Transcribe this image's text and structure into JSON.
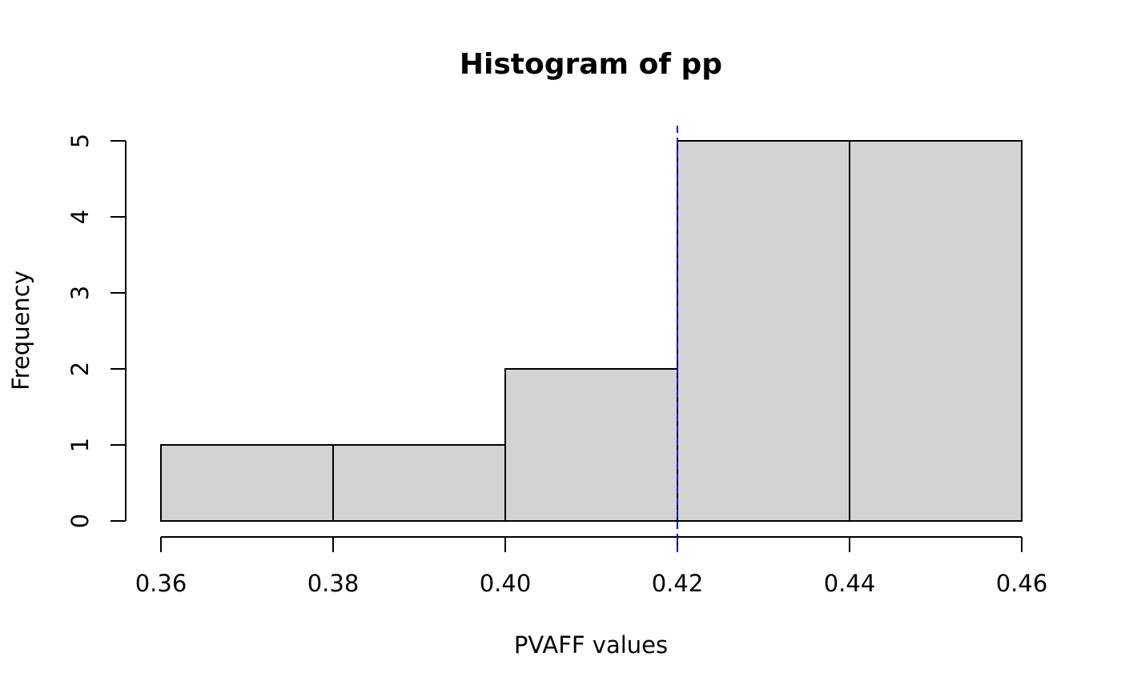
{
  "chart_data": {
    "type": "bar",
    "title": "Histogram of pp",
    "xlabel": "PVAFF values",
    "ylabel": "Frequency",
    "bins": [
      {
        "from": 0.36,
        "to": 0.38,
        "count": 1
      },
      {
        "from": 0.38,
        "to": 0.4,
        "count": 1
      },
      {
        "from": 0.4,
        "to": 0.42,
        "count": 2
      },
      {
        "from": 0.42,
        "to": 0.44,
        "count": 5
      },
      {
        "from": 0.44,
        "to": 0.46,
        "count": 5
      }
    ],
    "xlim": [
      0.36,
      0.46
    ],
    "ylim": [
      0,
      5
    ],
    "x_ticks": [
      "0.36",
      "0.38",
      "0.40",
      "0.42",
      "0.44",
      "0.46"
    ],
    "y_ticks": [
      "0",
      "1",
      "2",
      "3",
      "4",
      "5"
    ],
    "reference_line": {
      "x": 0.42,
      "color": "#0000ff",
      "style": "dashed"
    },
    "grid": false,
    "legend": "none",
    "bar_fill": "#d3d3d3"
  }
}
